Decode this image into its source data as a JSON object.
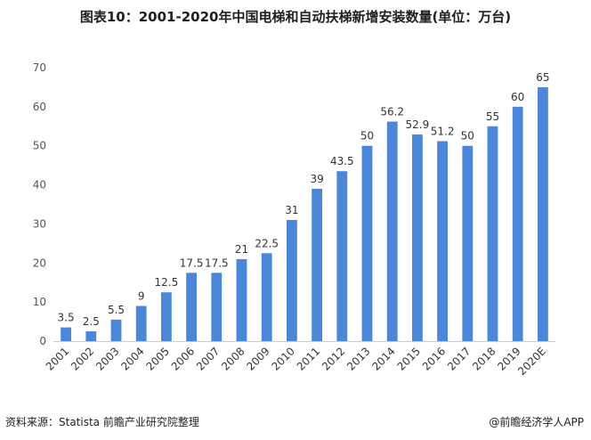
{
  "chart_data": {
    "type": "bar",
    "title": "图表10：2001-2020年中国电梯和自动扶梯新增安装数量(单位：万台)",
    "categories": [
      "2001",
      "2002",
      "2003",
      "2004",
      "2005",
      "2006",
      "2007",
      "2008",
      "2009",
      "2010",
      "2011",
      "2012",
      "2013",
      "2014",
      "2015",
      "2016",
      "2017",
      "2018",
      "2019",
      "2020E"
    ],
    "values": [
      3.5,
      2.5,
      5.5,
      9,
      12.5,
      17.5,
      17.5,
      21,
      22.5,
      31,
      39,
      43.5,
      50,
      56.2,
      52.9,
      51.2,
      50,
      55,
      60,
      65
    ],
    "data_labels": [
      "3.5",
      "2.5",
      "5.5",
      "9",
      "12.5",
      "17.5",
      "17.5",
      "21",
      "22.5",
      "31",
      "39",
      "43.5",
      "50",
      "56.2",
      "52.9",
      "51.2",
      "50",
      "55",
      "60",
      "65"
    ],
    "y_ticks": [
      "0",
      "10",
      "20",
      "30",
      "40",
      "50",
      "60",
      "70"
    ],
    "ylim": [
      0,
      70
    ],
    "xlabel": "",
    "ylabel": "",
    "grid": false,
    "bar_color": "#4a86d9"
  },
  "footer": {
    "source": "资料来源：Statista 前瞻产业研究院整理",
    "brand": "@前瞻经济学人APP"
  }
}
